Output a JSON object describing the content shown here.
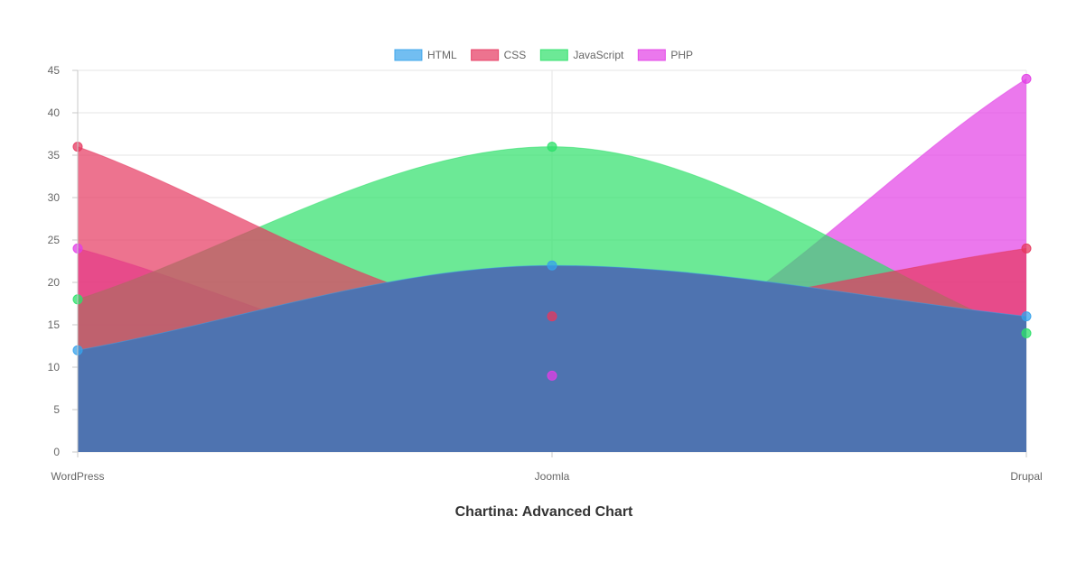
{
  "chart_data": {
    "type": "area",
    "title": "Chartina: Advanced Chart",
    "xlabel": "",
    "ylabel": "",
    "categories": [
      "WordPress",
      "Joomla",
      "Drupal"
    ],
    "ylim": [
      0,
      45
    ],
    "y_ticks": [
      0,
      5,
      10,
      15,
      20,
      25,
      30,
      35,
      40,
      45
    ],
    "grid": true,
    "legend_position": "top-center",
    "smooth": true,
    "series": [
      {
        "name": "HTML",
        "values": [
          12,
          22,
          16
        ],
        "color": "#36a2eb"
      },
      {
        "name": "CSS",
        "values": [
          36,
          16,
          24
        ],
        "color": "#e6385f"
      },
      {
        "name": "JavaScript",
        "values": [
          18,
          36,
          14
        ],
        "color": "#2ee06a"
      },
      {
        "name": "PHP",
        "values": [
          24,
          9,
          44
        ],
        "color": "#e23ee6"
      }
    ],
    "draw_order": [
      "PHP",
      "JavaScript",
      "CSS",
      "HTML"
    ],
    "base_fill_color": "#4e73b0"
  }
}
